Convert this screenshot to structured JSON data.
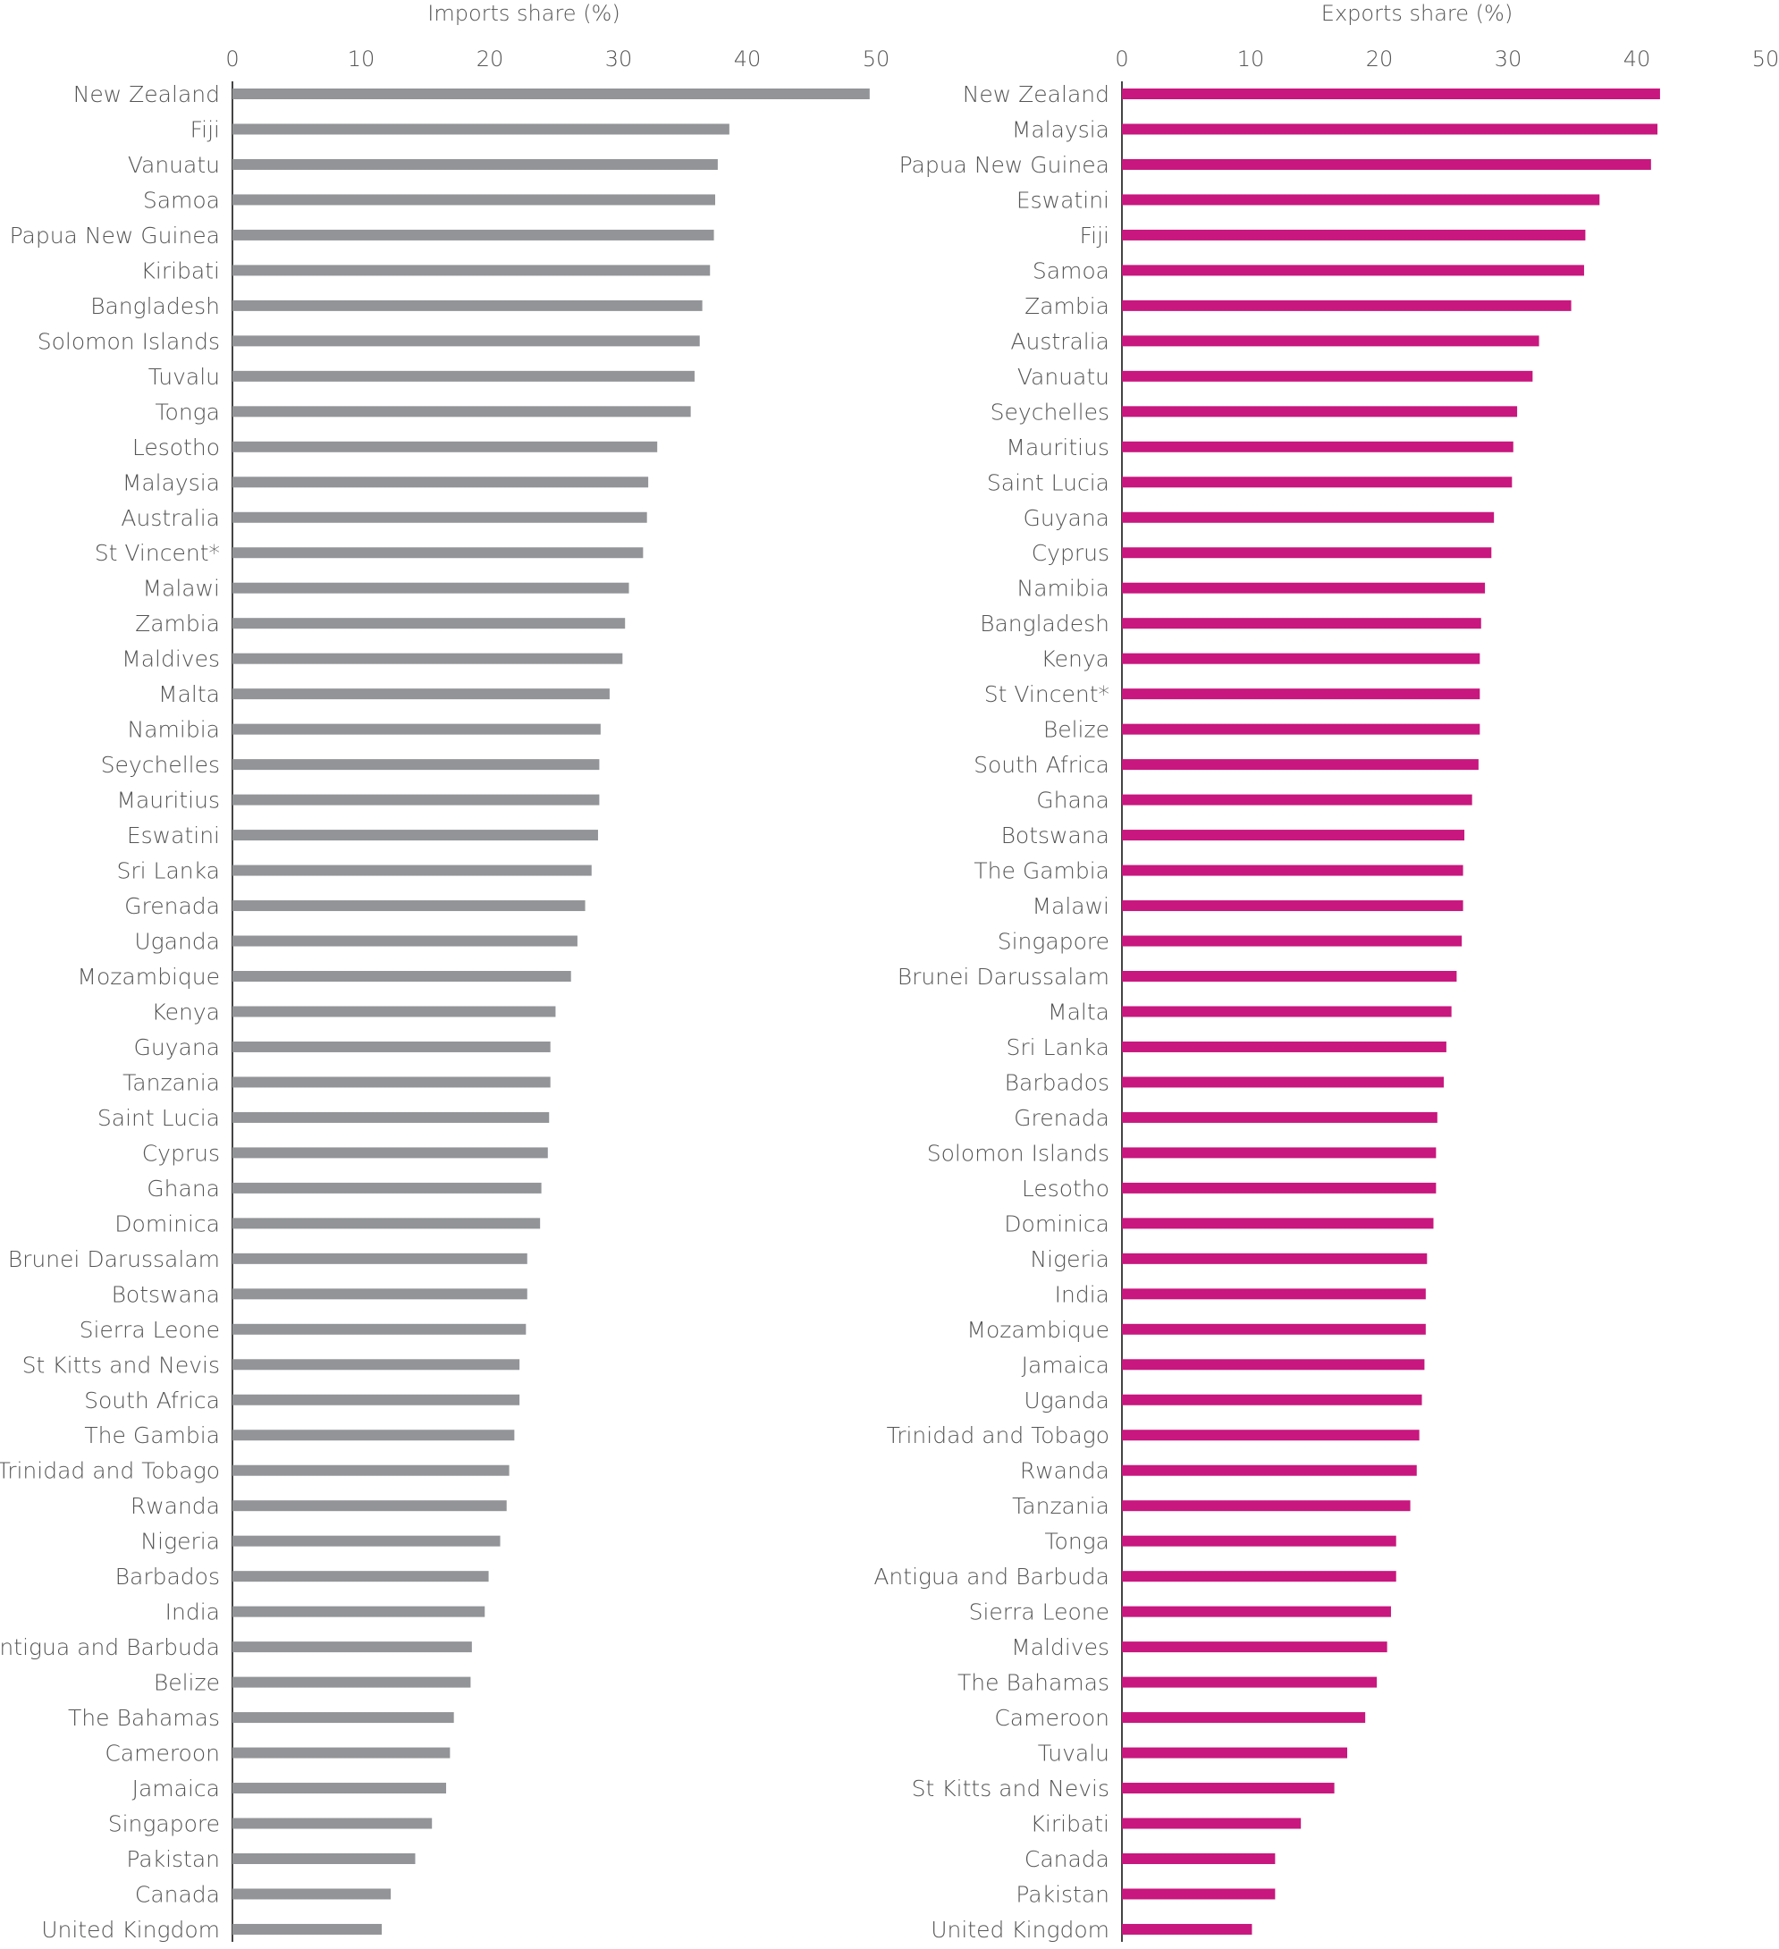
{
  "colors": {
    "imports": "#929497",
    "exports": "#C8177E",
    "text": "#555555"
  },
  "chart_data": [
    {
      "type": "bar",
      "orientation": "horizontal",
      "title": "Imports share (%)",
      "xlim": [
        0,
        50
      ],
      "ticks": [
        "0",
        "10",
        "20",
        "30",
        "40",
        "50"
      ],
      "tick_values": [
        0,
        10,
        20,
        30,
        40,
        50
      ],
      "axis_position": "top",
      "grid": false,
      "legend": "none",
      "categories": [
        "New Zealand",
        "Fiji",
        "Vanuatu",
        "Samoa",
        "Papua New Guinea",
        "Kiribati",
        "Bangladesh",
        "Solomon Islands",
        "Tuvalu",
        "Tonga",
        "Lesotho",
        "Malaysia",
        "Australia",
        "St Vincent*",
        "Malawi",
        "Zambia",
        "Maldives",
        "Malta",
        "Namibia",
        "Seychelles",
        "Mauritius",
        "Eswatini",
        "Sri Lanka",
        "Grenada",
        "Uganda",
        "Mozambique",
        "Kenya",
        "Guyana",
        "Tanzania",
        "Saint Lucia",
        "Cyprus",
        "Ghana",
        "Dominica",
        "Brunei Darussalam",
        "Botswana",
        "Sierra Leone",
        "St Kitts and Nevis",
        "South Africa",
        "The Gambia",
        "Trinidad and Tobago",
        "Rwanda",
        "Nigeria",
        "Barbados",
        "India",
        "Antigua and Barbuda",
        "Belize",
        "The Bahamas",
        "Cameroon",
        "Jamaica",
        "Singapore",
        "Pakistan",
        "Canada",
        "United Kingdom"
      ],
      "values": [
        49.5,
        38.6,
        37.7,
        37.5,
        37.4,
        37.1,
        36.5,
        36.3,
        35.9,
        35.6,
        33.0,
        32.3,
        32.2,
        31.9,
        30.8,
        30.5,
        30.3,
        29.3,
        28.6,
        28.5,
        28.5,
        28.4,
        27.9,
        27.4,
        26.8,
        26.3,
        25.1,
        24.7,
        24.7,
        24.6,
        24.5,
        24.0,
        23.9,
        22.9,
        22.9,
        22.8,
        22.3,
        22.3,
        21.9,
        21.5,
        21.3,
        20.8,
        19.9,
        19.6,
        18.6,
        18.5,
        17.2,
        16.9,
        16.6,
        15.5,
        14.2,
        12.3,
        11.6
      ]
    },
    {
      "type": "bar",
      "orientation": "horizontal",
      "title": "Exports share (%)",
      "xlim": [
        0,
        50
      ],
      "ticks": [
        "0",
        "10",
        "20",
        "30",
        "40",
        "50"
      ],
      "tick_values": [
        0,
        10,
        20,
        30,
        40,
        50
      ],
      "axis_position": "top",
      "grid": false,
      "legend": "none",
      "categories": [
        "New Zealand",
        "Malaysia",
        "Papua New Guinea",
        "Eswatini",
        "Fiji",
        "Samoa",
        "Zambia",
        "Australia",
        "Vanuatu",
        "Seychelles",
        "Mauritius",
        "Saint Lucia",
        "Guyana",
        "Cyprus",
        "Namibia",
        "Bangladesh",
        "Kenya",
        "St Vincent*",
        "Belize",
        "South Africa",
        "Ghana",
        "Botswana",
        "The Gambia",
        "Malawi",
        "Singapore",
        "Brunei Darussalam",
        "Malta",
        "Sri Lanka",
        "Barbados",
        "Grenada",
        "Solomon Islands",
        "Lesotho",
        "Dominica",
        "Nigeria",
        "India",
        "Mozambique",
        "Jamaica",
        "Uganda",
        "Trinidad and Tobago",
        "Rwanda",
        "Tanzania",
        "Tonga",
        "Antigua and Barbuda",
        "Sierra Leone",
        "Maldives",
        "The Bahamas",
        "Cameroon",
        "Tuvalu",
        "St Kitts and Nevis",
        "Kiribati",
        "Canada",
        "Pakistan",
        "United Kingdom"
      ],
      "values": [
        41.8,
        41.6,
        41.1,
        37.1,
        36.0,
        35.9,
        34.9,
        32.4,
        31.9,
        30.7,
        30.4,
        30.3,
        28.9,
        28.7,
        28.2,
        27.9,
        27.8,
        27.8,
        27.8,
        27.7,
        27.2,
        26.6,
        26.5,
        26.5,
        26.4,
        26.0,
        25.6,
        25.2,
        25.0,
        24.5,
        24.4,
        24.4,
        24.2,
        23.7,
        23.6,
        23.6,
        23.5,
        23.3,
        23.1,
        22.9,
        22.4,
        21.3,
        21.3,
        20.9,
        20.6,
        19.8,
        18.9,
        17.5,
        16.5,
        13.9,
        11.9,
        11.9,
        10.1
      ]
    }
  ]
}
